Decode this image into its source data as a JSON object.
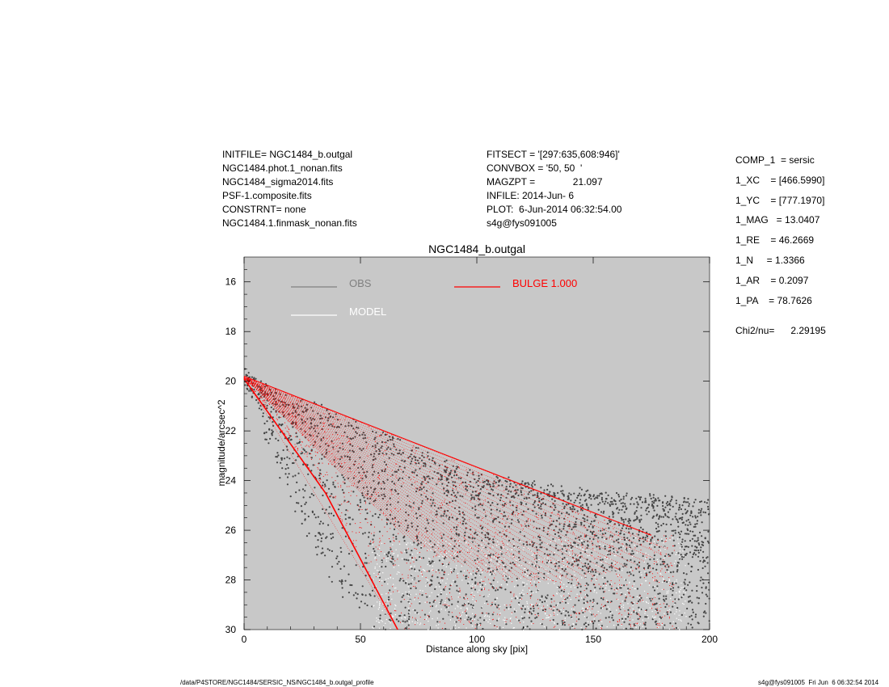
{
  "header": {
    "left": [
      "INITFILE= NGC1484_b.outgal",
      "NGC1484.phot.1_nonan.fits",
      "NGC1484_sigma2014.fits",
      "PSF-1.composite.fits",
      "CONSTRNT= none",
      "NGC1484.1.finmask_nonan.fits"
    ],
    "middle": [
      "FITSECT = '[297:635,608:946]'",
      "CONVBOX = '50, 50  '",
      "MAGZPT =              21.097",
      "INFILE: 2014-Jun- 6",
      "PLOT:  6-Jun-2014 06:32:54.00",
      "s4g@fys091005"
    ]
  },
  "params": {
    "rows": [
      "COMP_1  = sersic",
      "1_XC    = [466.5990]",
      "1_YC    = [777.1970]",
      "1_MAG   = 13.0407",
      "1_RE    = 46.2669",
      "1_N     = 1.3366",
      "1_AR    = 0.2097",
      "1_PA    = 78.7626"
    ],
    "chi2": "Chi2/nu=      2.29195"
  },
  "footer": {
    "left": "/data/P4STORE/NGC1484/SERSIC_NS/NGC1484_b.outgal_profile",
    "right": "s4g@fys091005  Fri Jun  6 06:32:54 2014"
  },
  "colors": {
    "plot_bg": "#c8c8c8",
    "obs": "#444444",
    "obs_legend": "#808080",
    "model": "#ffffff",
    "bulge": "#ff0000"
  },
  "chart_data": {
    "type": "scatter",
    "title": "NGC1484_b.outgal",
    "xlabel": "Distance along sky [pix]",
    "ylabel": "magnitude/arcsec^2",
    "xlim": [
      0,
      200
    ],
    "ylim": [
      30,
      15
    ],
    "y_inverted": true,
    "grid": false,
    "xticks": [
      0,
      50,
      100,
      150,
      200
    ],
    "yticks": [
      16,
      18,
      20,
      22,
      24,
      26,
      28,
      30
    ],
    "legend": [
      {
        "label": "OBS",
        "color": "#808080"
      },
      {
        "label": "MODEL",
        "color": "#ffffff"
      },
      {
        "label": "BULGE  1.000",
        "color": "#ff0000"
      }
    ],
    "series": [
      {
        "name": "OBS",
        "color": "#444444",
        "envelope": {
          "upper_edge": [
            [
              0,
              19.7
            ],
            [
              10,
              20.3
            ],
            [
              20,
              20.8
            ],
            [
              30,
              21.0
            ],
            [
              40,
              21.4
            ],
            [
              50,
              21.9
            ],
            [
              60,
              22.2
            ],
            [
              70,
              22.6
            ],
            [
              80,
              23.1
            ],
            [
              100,
              23.8
            ],
            [
              120,
              24.2
            ],
            [
              150,
              24.6
            ],
            [
              180,
              24.8
            ],
            [
              200,
              24.9
            ]
          ],
          "lower_edge": [
            [
              0,
              20.0
            ],
            [
              10,
              22.5
            ],
            [
              20,
              25.0
            ],
            [
              30,
              27.0
            ],
            [
              40,
              28.5
            ],
            [
              50,
              29.5
            ],
            [
              60,
              30.0
            ],
            [
              200,
              30.0
            ]
          ]
        }
      },
      {
        "name": "BULGE  1.000",
        "color": "#ff0000",
        "envelope": {
          "upper_edge": [
            [
              0,
              19.8
            ],
            [
              175,
              26.2
            ]
          ],
          "lower_edge": [
            [
              0,
              19.9
            ],
            [
              35,
              24.5
            ],
            [
              66,
              30.0
            ]
          ]
        }
      },
      {
        "name": "MODEL",
        "color": "#ffffff",
        "envelope": {
          "upper_edge": [
            [
              50,
              26.5
            ],
            [
              175,
              26.3
            ]
          ],
          "lower_edge": [
            [
              70,
              30.0
            ],
            [
              190,
              30.0
            ]
          ]
        }
      }
    ]
  }
}
